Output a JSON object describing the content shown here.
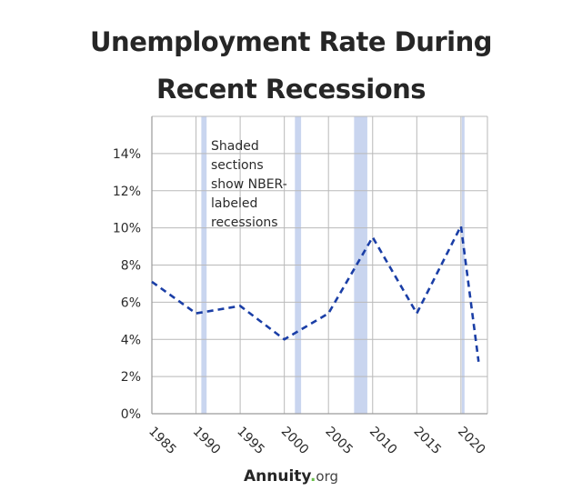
{
  "header": {
    "title_line1": "Unemployment Rate During",
    "title_line2": "Recent Recessions"
  },
  "footer": {
    "brand": "Annuity",
    "dot": ".",
    "tld": "org"
  },
  "colors": {
    "line": "#1a3ea6",
    "recession_band": "#c9d5ef",
    "grid": "#b9b9b9",
    "text": "#2b2b2b"
  },
  "chart_data": {
    "type": "line",
    "title": "Unemployment Rate During Recent Recessions",
    "xlabel": "",
    "ylabel": "",
    "xlim": [
      1985,
      2023
    ],
    "ylim": [
      0,
      16
    ],
    "x_ticks": [
      1985,
      1990,
      1995,
      2000,
      2005,
      2010,
      2015,
      2020
    ],
    "y_ticks": [
      0,
      2,
      4,
      6,
      8,
      10,
      12,
      14
    ],
    "y_tick_labels": [
      "0%",
      "2%",
      "4%",
      "6%",
      "8%",
      "10%",
      "12%",
      "14%"
    ],
    "grid": true,
    "series": [
      {
        "x": [
          1985,
          1990,
          1995,
          2000,
          2005,
          2010,
          2015,
          2020,
          2022
        ],
        "values": [
          7.1,
          5.4,
          5.8,
          4.0,
          5.4,
          9.5,
          5.4,
          10.1,
          2.8
        ],
        "style": "dashed"
      }
    ],
    "recessions": [
      {
        "start": 1990.6,
        "end": 1991.2
      },
      {
        "start": 2001.2,
        "end": 2001.9
      },
      {
        "start": 2007.9,
        "end": 2009.4
      },
      {
        "start": 2020.1,
        "end": 2020.4
      }
    ],
    "annotation": {
      "lines": [
        "Shaded",
        "sections",
        "show NBER-",
        "labeled",
        "recessions"
      ]
    }
  }
}
